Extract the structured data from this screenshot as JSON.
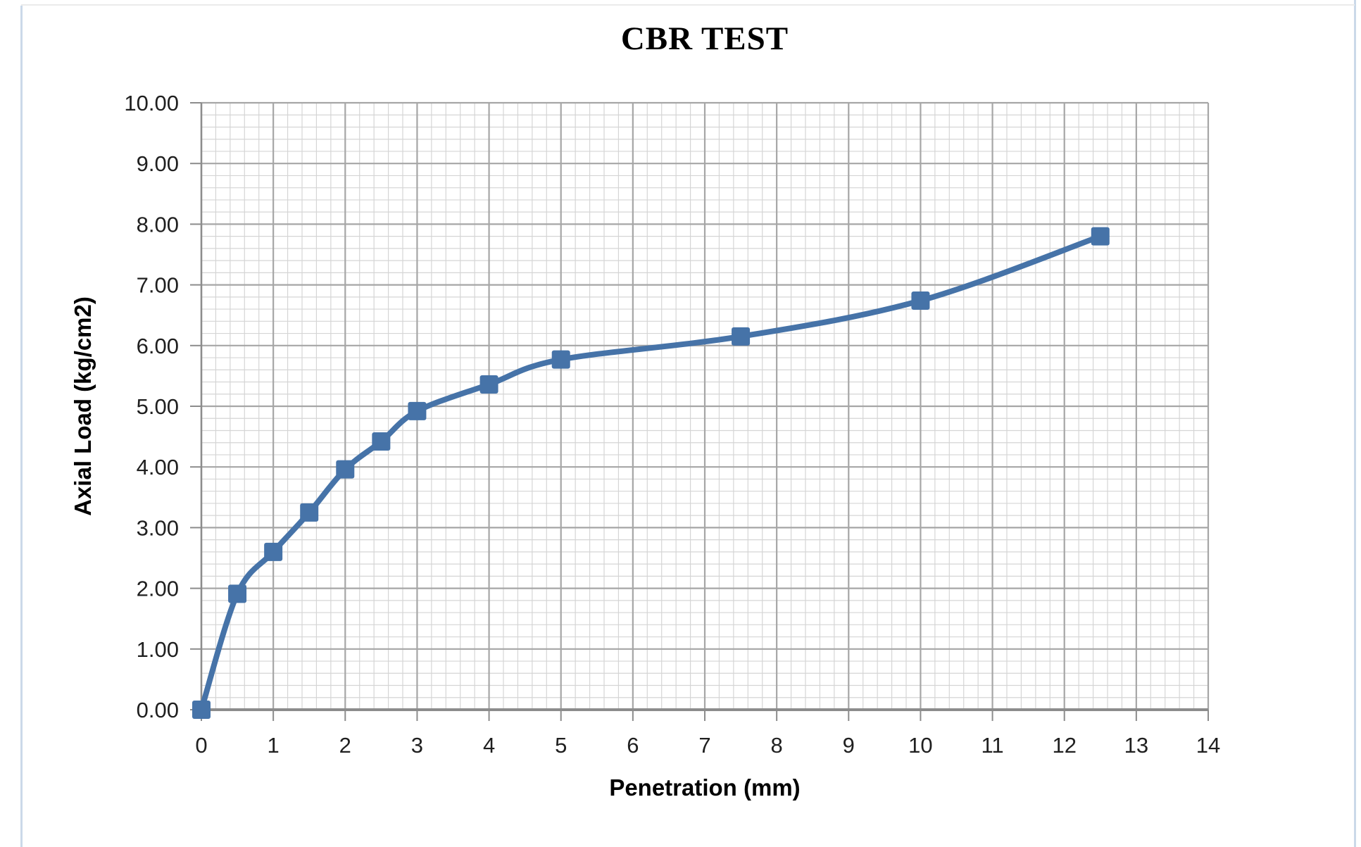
{
  "chart_data": {
    "type": "line",
    "title": "CBR TEST",
    "xlabel": "Penetration (mm)",
    "ylabel": "Axial Load (kg/cm2)",
    "x": [
      0,
      0.5,
      1,
      1.5,
      2,
      2.5,
      3,
      4,
      5,
      7.5,
      10,
      12.5
    ],
    "y": [
      0.0,
      1.91,
      2.6,
      3.25,
      3.96,
      4.42,
      4.92,
      5.36,
      5.77,
      6.15,
      6.74,
      7.8
    ],
    "xlim": [
      0,
      14
    ],
    "ylim": [
      0,
      10
    ],
    "x_major_step": 1,
    "y_major_step": 1,
    "x_minor_step": 0.2,
    "y_minor_step": 0.2,
    "x_tick_labels": [
      "0",
      "1",
      "2",
      "3",
      "4",
      "5",
      "6",
      "7",
      "8",
      "9",
      "10",
      "11",
      "12",
      "13",
      "14"
    ],
    "y_tick_labels": [
      "0.00",
      "1.00",
      "2.00",
      "3.00",
      "4.00",
      "5.00",
      "6.00",
      "7.00",
      "8.00",
      "9.00",
      "10.00"
    ],
    "grid": "major+minor",
    "legend": "none",
    "marker": "square",
    "smooth": true,
    "colors": {
      "series": "#4673A8",
      "major_grid": "#A6A6A6",
      "minor_grid": "#D5D5D5",
      "axis": "#8C8C8C",
      "tick_label": "#1F1F1F",
      "title": "#000000",
      "page_border_side": "#CBD9E9",
      "page_border_top": "#EBEBEB"
    }
  }
}
